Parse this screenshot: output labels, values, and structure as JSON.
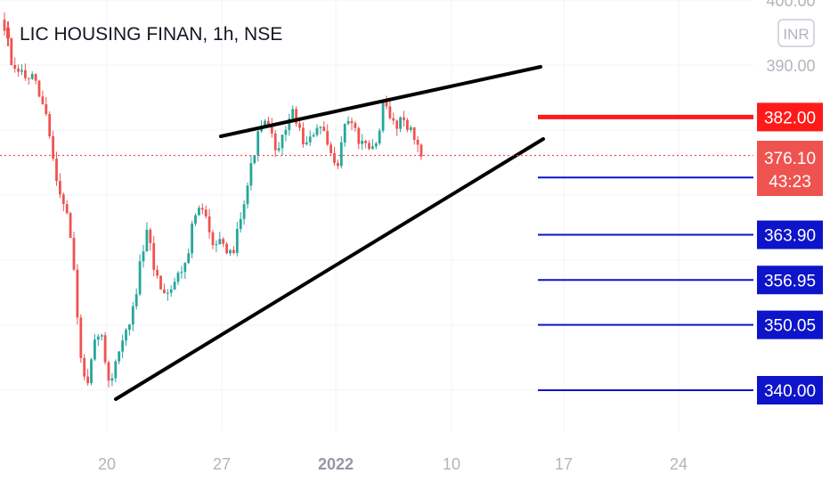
{
  "header": {
    "title": "LIC HOUSING FINAN, 1h, NSE"
  },
  "currency_badge": {
    "label": "INR"
  },
  "chart_data": {
    "type": "candlestick",
    "symbol": "LIC HOUSING FINAN",
    "interval": "1h",
    "exchange": "NSE",
    "currency": "INR",
    "x_ticks": [
      {
        "label": "20",
        "emphasis": false
      },
      {
        "label": "27",
        "emphasis": false
      },
      {
        "label": "2022",
        "emphasis": true
      },
      {
        "label": "10",
        "emphasis": false
      },
      {
        "label": "17",
        "emphasis": false
      },
      {
        "label": "24",
        "emphasis": false
      }
    ],
    "y_ticks": [
      "400.00",
      "390.00"
    ],
    "ylim": [
      333,
      401
    ],
    "grid": true,
    "last_price": {
      "value": "376.10",
      "countdown": "43:23",
      "price": 376.1
    },
    "horizontal_levels": [
      {
        "value": 382.0,
        "label": "382.00",
        "color": "#ff1a1a",
        "style": "resistance"
      },
      {
        "value": 372.7,
        "label": "372.70",
        "color": "#0d14c9",
        "style": "support"
      },
      {
        "value": 363.9,
        "label": "363.90",
        "color": "#0d14c9",
        "style": "support"
      },
      {
        "value": 356.95,
        "label": "356.95",
        "color": "#0d14c9",
        "style": "support"
      },
      {
        "value": 350.05,
        "label": "350.05",
        "color": "#0d14c9",
        "style": "support"
      },
      {
        "value": 340.0,
        "label": "340.00",
        "color": "#0d14c9",
        "style": "support"
      }
    ],
    "rising_wedge": {
      "upper": [
        {
          "x": "Dec 27",
          "y": 380.0
        },
        {
          "x": "Jan 16",
          "y": 389.5
        }
      ],
      "lower": [
        {
          "x": "Dec 20",
          "y": 339.1
        },
        {
          "x": "Jan 16",
          "y": 379.1
        }
      ]
    },
    "price_path": [
      [
        0,
        397.0
      ],
      [
        0.3,
        394.6
      ],
      [
        0.7,
        388.5
      ],
      [
        1.1,
        389.2
      ],
      [
        1.5,
        387.8
      ],
      [
        1.9,
        388.1
      ],
      [
        2.3,
        385.1
      ],
      [
        2.7,
        382.4
      ],
      [
        3.1,
        376.0
      ],
      [
        3.5,
        370.6
      ],
      [
        3.9,
        368.4
      ],
      [
        4.3,
        361.7
      ],
      [
        4.6,
        351.5
      ],
      [
        4.9,
        343.1
      ],
      [
        5.2,
        339.8
      ],
      [
        5.6,
        346.4
      ],
      [
        6.0,
        350.0
      ],
      [
        6.3,
        344.0
      ],
      [
        6.6,
        340.9
      ],
      [
        7.0,
        345.1
      ],
      [
        7.4,
        347.9
      ],
      [
        7.8,
        350.0
      ],
      [
        8.1,
        353.5
      ],
      [
        8.5,
        360.2
      ],
      [
        8.9,
        364.4
      ],
      [
        9.3,
        358.6
      ],
      [
        9.7,
        356.0
      ],
      [
        10.1,
        355.1
      ],
      [
        10.5,
        356.6
      ],
      [
        10.9,
        358.4
      ],
      [
        11.3,
        360.2
      ],
      [
        11.7,
        366.5
      ],
      [
        12.1,
        368.0
      ],
      [
        12.5,
        366.1
      ],
      [
        12.9,
        362.9
      ],
      [
        13.3,
        363.4
      ],
      [
        13.7,
        360.3
      ],
      [
        14.1,
        361.2
      ],
      [
        14.5,
        366.2
      ],
      [
        14.9,
        370.6
      ],
      [
        15.3,
        375.4
      ],
      [
        15.7,
        379.8
      ],
      [
        16.1,
        381.3
      ],
      [
        16.5,
        378.8
      ],
      [
        16.9,
        376.5
      ],
      [
        17.3,
        380.2
      ],
      [
        17.7,
        383.0
      ],
      [
        18.1,
        380.6
      ],
      [
        18.5,
        377.6
      ],
      [
        18.9,
        378.6
      ],
      [
        19.3,
        381.0
      ],
      [
        19.7,
        378.9
      ],
      [
        20.1,
        375.9
      ],
      [
        20.5,
        375.1
      ],
      [
        20.9,
        380.5
      ],
      [
        21.3,
        382.0
      ],
      [
        21.7,
        378.6
      ],
      [
        22.1,
        377.5
      ],
      [
        22.5,
        376.6
      ],
      [
        22.9,
        378.2
      ],
      [
        23.3,
        384.5
      ],
      [
        23.7,
        381.6
      ],
      [
        24.1,
        380.9
      ],
      [
        24.5,
        382.1
      ],
      [
        24.9,
        380.0
      ],
      [
        25.3,
        378.1
      ],
      [
        25.6,
        376.1
      ]
    ]
  }
}
